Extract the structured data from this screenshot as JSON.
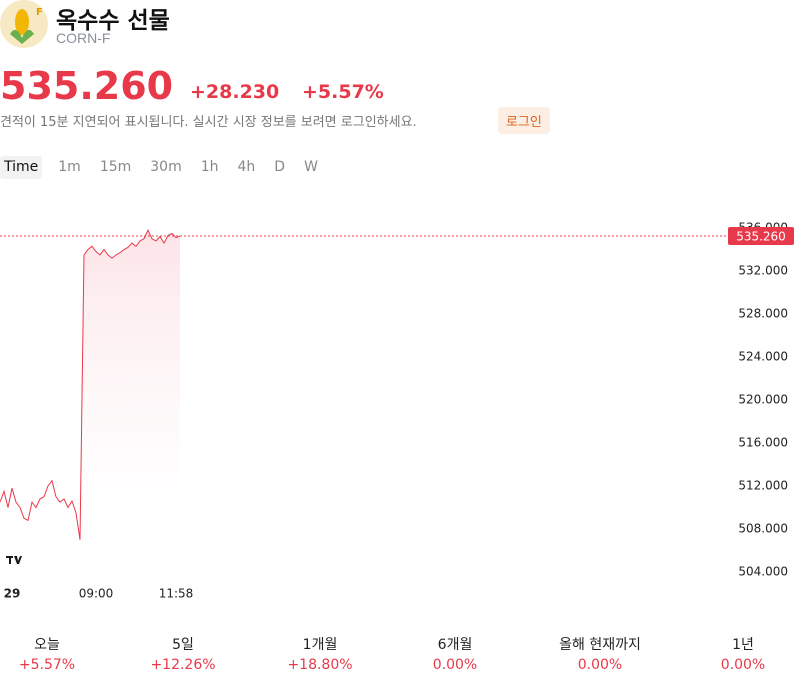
{
  "header": {
    "title": "옥수수 선물",
    "symbol": "CORN-F",
    "icon_badge": "F"
  },
  "quote": {
    "price": "535.260",
    "change": "+28.230",
    "change_pct": "+5.57%",
    "notice": "견적이 15분 지연되어 표시됩니다. 실시간 시장 정보를 보려면 로그인하세요.",
    "login": "로그인"
  },
  "timeframes": [
    "Time",
    "1m",
    "15m",
    "30m",
    "1h",
    "4h",
    "D",
    "W"
  ],
  "chart_data": {
    "type": "line",
    "color": "#e8394a",
    "categories": [
      null,
      null,
      null,
      "29",
      null,
      null,
      null,
      null,
      null,
      null,
      null,
      null,
      null,
      null,
      null,
      null,
      null,
      null,
      null,
      null,
      null,
      null,
      null,
      null,
      "09:00",
      null,
      null,
      null,
      null,
      null,
      null,
      null,
      null,
      null,
      null,
      null,
      null,
      null,
      null,
      null,
      null,
      null,
      null,
      null,
      "11:58",
      null
    ],
    "values": [
      510.5,
      511.5,
      510,
      511.8,
      510.5,
      510,
      509,
      508.8,
      510.5,
      510,
      510.8,
      511,
      512,
      512.5,
      511,
      510.5,
      510.8,
      510,
      510.6,
      509.5,
      507,
      533.5,
      534,
      534.3,
      533.8,
      533.5,
      534,
      533.5,
      533.2,
      533.5,
      533.7,
      534,
      534.2,
      534.6,
      534.3,
      534.8,
      535,
      535.8,
      535,
      534.8,
      535.2,
      534.6,
      535.3,
      535.5,
      535.1,
      535.26
    ],
    "last_price": {
      "value": 535.26,
      "label": "535.260"
    },
    "ylim": [
      504,
      536
    ],
    "yticks": [
      {
        "value": 504,
        "label": "504.000"
      },
      {
        "value": 508,
        "label": "508.000"
      },
      {
        "value": 512,
        "label": "512.000"
      },
      {
        "value": 516,
        "label": "516.000"
      },
      {
        "value": 520,
        "label": "520.000"
      },
      {
        "value": 524,
        "label": "524.000"
      },
      {
        "value": 528,
        "label": "528.000"
      },
      {
        "value": 532,
        "label": "532.000"
      },
      {
        "value": 536,
        "label": "536.000"
      }
    ]
  },
  "periods": [
    {
      "label": "오늘",
      "change": "+5.57%"
    },
    {
      "label": "5일",
      "change": "+12.26%"
    },
    {
      "label": "1개월",
      "change": "+18.80%"
    },
    {
      "label": "6개월",
      "change": "0.00%"
    },
    {
      "label": "올해 현재까지",
      "change": "0.00%"
    },
    {
      "label": "1년",
      "change": "0.00%"
    }
  ]
}
